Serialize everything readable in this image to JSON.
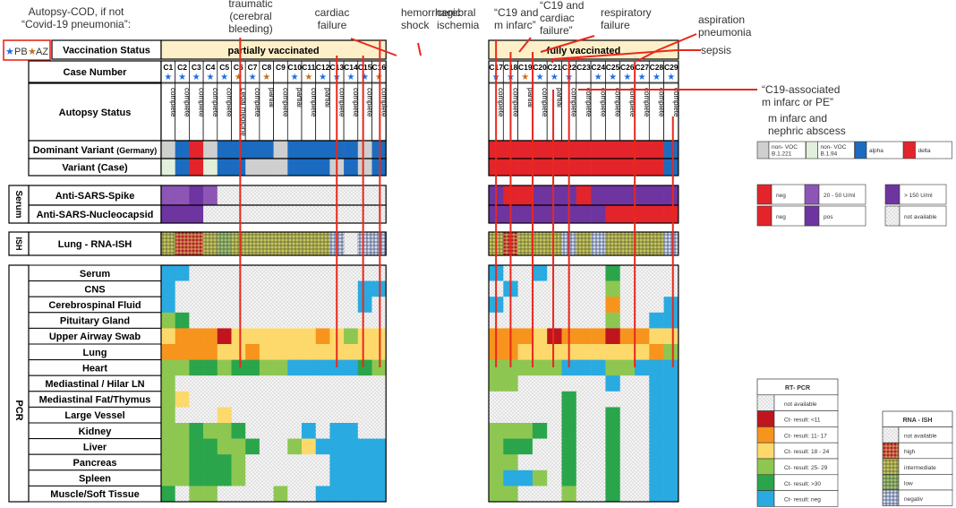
{
  "top_notes": {
    "autopsy_cod": "Autopsy-COD, if not\n“Covid-19 pneumonia”:",
    "traumatic": "traumatic\n(cerebral\nbleeding)",
    "cardiac": "cardiac\nfailure",
    "hemorrhagic": "hemorrhagic\nshock",
    "cerebral": "cerebral\nischemia",
    "c19_infarc": "“C19 and\nm infarc”",
    "c19_cardiac": "“C19 and\ncardiac\nfailure”",
    "respiratory": "respiratory\nfailure",
    "aspiration": "aspiration\npneumonia",
    "sepsis": "sepsis",
    "c19_assoc": "“C19-associated\nm infarc or PE”",
    "nephric": "m infarc and\nnephric abscess"
  },
  "vaccine_legend": {
    "pb": "PB",
    "az": "AZ"
  },
  "row_labels": {
    "vaccination_status": "Vaccination Status",
    "case_number": "Case Number",
    "autopsy_status": "Autopsy Status",
    "dominant_variant": "Dominant Variant",
    "dominant_variant_suffix": "(Germany)",
    "variant_case": "Variant (Case)",
    "serum_section": "Serum",
    "anti_spike": "Anti-SARS-Spike",
    "anti_nucleo": "Anti-SARS-Nucleocapsid",
    "ish_section": "ISH",
    "lung_rna_ish": "Lung - RNA-ISH",
    "pcr_section": "PCR"
  },
  "groups": {
    "partial": "partially vaccinated",
    "full": "fully vaccinated"
  },
  "pcr_tissues": [
    "Serum",
    "CNS",
    "Cerebrospinal Fluid",
    "Pituitary Gland",
    "Upper Airway Swab",
    "Lung",
    "Heart",
    "Mediastinal / Hilar LN",
    "Mediastinal Fat/Thymus",
    "Large Vessel",
    "Kidney",
    "Liver",
    "Pancreas",
    "Spleen",
    "Muscle/Soft Tissue"
  ],
  "colors": {
    "neg_blue": "#29aae1",
    "ct_lt11": "#c0151d",
    "ct_11_17": "#f7941d",
    "ct_18_24": "#fdd96b",
    "ct_25_29": "#8dc751",
    "ct_gt30": "#2aa54b",
    "grey": "#cfcfcf",
    "light_green": "#e2efda",
    "alpha": "#1b6cc0",
    "delta": "#e4242b",
    "purple_dark": "#6e35a1",
    "purple_mid": "#8d55b5",
    "red_annot": "#e8281d",
    "header_fill": "#fdf0c8",
    "pb_star": "#1e6fe0",
    "az_star": "#c8701d"
  },
  "cases_partial": [
    {
      "id": "C1",
      "star": "pb",
      "status": "complete"
    },
    {
      "id": "C2",
      "star": "pb",
      "status": "complete"
    },
    {
      "id": "C3",
      "star": "pb",
      "status": "complete"
    },
    {
      "id": "C4",
      "star": "pb",
      "status": "complete"
    },
    {
      "id": "C5",
      "star": "pb",
      "status": "complete"
    },
    {
      "id": "C6",
      "star": "az",
      "status": "Legal medicine"
    },
    {
      "id": "C7",
      "star": "pb",
      "status": "complete"
    },
    {
      "id": "C8",
      "star": "az",
      "status": "partial"
    },
    {
      "id": "C9",
      "star": "",
      "status": "complete"
    },
    {
      "id": "C10",
      "star": "pb",
      "status": "partial"
    },
    {
      "id": "C11",
      "star": "az",
      "status": "complete"
    },
    {
      "id": "C12",
      "star": "pb",
      "status": "partial"
    },
    {
      "id": "C13",
      "star": "pb",
      "status": "complete"
    },
    {
      "id": "C14",
      "star": "pb",
      "status": "complete"
    },
    {
      "id": "C15",
      "star": "pb",
      "status": "complete"
    },
    {
      "id": "C16",
      "star": "az",
      "status": "complete"
    }
  ],
  "cases_full": [
    {
      "id": "C17",
      "star": "pb",
      "status": "complete"
    },
    {
      "id": "C18",
      "star": "pb",
      "status": "complete"
    },
    {
      "id": "C19",
      "star": "az",
      "status": "partial"
    },
    {
      "id": "C20",
      "star": "pb",
      "status": "complete"
    },
    {
      "id": "C21",
      "star": "pb",
      "status": "partial"
    },
    {
      "id": "C22",
      "star": "pb",
      "status": "complete"
    },
    {
      "id": "C23",
      "star": "",
      "status": "complete"
    },
    {
      "id": "C24",
      "star": "pb",
      "status": "complete"
    },
    {
      "id": "C25",
      "star": "pb",
      "status": "complete"
    },
    {
      "id": "C26",
      "star": "pb",
      "status": "complete"
    },
    {
      "id": "C27",
      "star": "pb",
      "status": "complete"
    },
    {
      "id": "C28",
      "star": "pb",
      "status": "complete"
    },
    {
      "id": "C29",
      "star": "pb",
      "status": "complete"
    }
  ],
  "dominant_partial": [
    "grey",
    "alpha",
    "delta",
    "grey",
    "alpha",
    "alpha",
    "alpha",
    "alpha",
    "grey",
    "alpha",
    "alpha",
    "alpha",
    "alpha",
    "alpha",
    "grey",
    "alpha"
  ],
  "dominant_full": [
    "delta",
    "delta",
    "delta",
    "delta",
    "delta",
    "delta",
    "delta",
    "delta",
    "delta",
    "delta",
    "delta",
    "delta",
    "alpha"
  ],
  "variant_partial": [
    "light_green",
    "alpha",
    "delta",
    "light_green",
    "alpha",
    "alpha",
    "grey",
    "grey",
    "grey",
    "alpha",
    "alpha",
    "alpha",
    "grey",
    "alpha",
    "grey",
    "alpha"
  ],
  "variant_full": [
    "delta",
    "delta",
    "delta",
    "delta",
    "delta",
    "delta",
    "delta",
    "delta",
    "delta",
    "delta",
    "delta",
    "delta",
    "alpha"
  ],
  "spike_partial": [
    "purple_mid",
    "purple_mid",
    "purple_dark",
    "purple_mid",
    "na",
    "na",
    "na",
    "na",
    "na",
    "na",
    "na",
    "na",
    "na",
    "na",
    "na",
    "na"
  ],
  "spike_full": [
    "purple_dark",
    "delta",
    "delta",
    "purple_dark",
    "purple_dark",
    "purple_dark",
    "delta",
    "purple_dark",
    "purple_dark",
    "purple_dark",
    "purple_dark",
    "purple_dark",
    "purple_dark"
  ],
  "nucleo_partial": [
    "purple_dark",
    "purple_dark",
    "purple_dark",
    "na",
    "na",
    "na",
    "na",
    "na",
    "na",
    "na",
    "na",
    "na",
    "na",
    "na",
    "na",
    "na"
  ],
  "nucleo_full": [
    "purple_dark",
    "purple_dark",
    "purple_dark",
    "purple_dark",
    "purple_dark",
    "purple_dark",
    "purple_dark",
    "purple_dark",
    "delta",
    "delta",
    "delta",
    "delta",
    "delta"
  ],
  "ish_partial": [
    "intermediate",
    "high",
    "high",
    "intermediate",
    "low",
    "intermediate",
    "intermediate",
    "intermediate",
    "intermediate",
    "intermediate",
    "intermediate",
    "intermediate",
    "negativ",
    "na",
    "negativ",
    "negativ"
  ],
  "ish_full": [
    "intermediate",
    "high",
    "intermediate",
    "intermediate",
    "intermediate",
    "negativ",
    "intermediate",
    "negativ",
    "intermediate",
    "intermediate",
    "intermediate",
    "intermediate",
    "negativ"
  ],
  "pcr_partial": [
    [
      "neg",
      "neg",
      "na",
      "na",
      "na",
      "na",
      "na",
      "na",
      "na",
      "na",
      "na",
      "na",
      "na",
      "na",
      "na",
      "na"
    ],
    [
      "neg",
      "na",
      "na",
      "na",
      "na",
      "na",
      "na",
      "na",
      "na",
      "na",
      "na",
      "na",
      "na",
      "na",
      "neg",
      "neg"
    ],
    [
      "neg",
      "na",
      "na",
      "na",
      "na",
      "na",
      "na",
      "na",
      "na",
      "na",
      "na",
      "na",
      "na",
      "na",
      "neg",
      "na"
    ],
    [
      "g25",
      "gt30",
      "na",
      "na",
      "na",
      "na",
      "na",
      "na",
      "na",
      "na",
      "na",
      "na",
      "na",
      "na",
      "na",
      "na"
    ],
    [
      "y",
      "o",
      "o",
      "o",
      "r",
      "y",
      "y",
      "y",
      "y",
      "y",
      "y",
      "o",
      "y",
      "g25",
      "y",
      "y"
    ],
    [
      "o",
      "o",
      "o",
      "o",
      "y",
      "y",
      "o",
      "y",
      "y",
      "y",
      "y",
      "y",
      "y",
      "y",
      "y",
      "y"
    ],
    [
      "g25",
      "g25",
      "gt30",
      "gt30",
      "g25",
      "gt30",
      "gt30",
      "g25",
      "g25",
      "neg",
      "neg",
      "neg",
      "neg",
      "neg",
      "gt30",
      "g25"
    ],
    [
      "g25",
      "na",
      "na",
      "na",
      "na",
      "na",
      "na",
      "na",
      "na",
      "na",
      "na",
      "na",
      "na",
      "na",
      "na",
      "na"
    ],
    [
      "g25",
      "y",
      "na",
      "na",
      "na",
      "na",
      "na",
      "na",
      "na",
      "na",
      "na",
      "na",
      "na",
      "na",
      "na",
      "na"
    ],
    [
      "g25",
      "na",
      "na",
      "na",
      "y",
      "na",
      "na",
      "na",
      "na",
      "na",
      "na",
      "na",
      "na",
      "na",
      "na",
      "na"
    ],
    [
      "g25",
      "g25",
      "gt30",
      "g25",
      "g25",
      "gt30",
      "na",
      "na",
      "na",
      "na",
      "neg",
      "na",
      "neg",
      "neg",
      "na",
      "na"
    ],
    [
      "g25",
      "g25",
      "gt30",
      "gt30",
      "g25",
      "g25",
      "gt30",
      "na",
      "na",
      "g25",
      "y",
      "neg",
      "neg",
      "neg",
      "neg",
      "neg"
    ],
    [
      "g25",
      "g25",
      "gt30",
      "gt30",
      "gt30",
      "g25",
      "na",
      "na",
      "na",
      "na",
      "na",
      "na",
      "neg",
      "neg",
      "neg",
      "neg"
    ],
    [
      "g25",
      "g25",
      "gt30",
      "gt30",
      "gt30",
      "g25",
      "na",
      "na",
      "na",
      "na",
      "na",
      "na",
      "neg",
      "neg",
      "neg",
      "neg"
    ],
    [
      "gt30",
      "na",
      "g25",
      "g25",
      "na",
      "na",
      "na",
      "na",
      "g25",
      "na",
      "na",
      "neg",
      "neg",
      "neg",
      "neg",
      "neg"
    ]
  ],
  "pcr_full": [
    [
      "neg",
      "na",
      "na",
      "neg",
      "na",
      "na",
      "na",
      "na",
      "gt30",
      "na",
      "na",
      "na",
      "na"
    ],
    [
      "na",
      "neg",
      "na",
      "na",
      "na",
      "na",
      "na",
      "na",
      "g25",
      "na",
      "na",
      "na",
      "na"
    ],
    [
      "neg",
      "na",
      "na",
      "na",
      "na",
      "na",
      "na",
      "na",
      "o",
      "na",
      "na",
      "na",
      "neg"
    ],
    [
      "na",
      "na",
      "na",
      "na",
      "na",
      "na",
      "na",
      "na",
      "g25",
      "na",
      "na",
      "neg",
      "neg"
    ],
    [
      "o",
      "o",
      "o",
      "y",
      "r",
      "o",
      "o",
      "o",
      "r",
      "o",
      "o",
      "y",
      "y"
    ],
    [
      "o",
      "o",
      "y",
      "y",
      "y",
      "y",
      "y",
      "y",
      "y",
      "y",
      "y",
      "o",
      "g25"
    ],
    [
      "g25",
      "g25",
      "g25",
      "g25",
      "g25",
      "neg",
      "neg",
      "neg",
      "g25",
      "g25",
      "neg",
      "neg",
      "neg"
    ],
    [
      "g25",
      "g25",
      "na",
      "na",
      "na",
      "na",
      "na",
      "na",
      "neg",
      "na",
      "na",
      "neg",
      "neg"
    ],
    [
      "na",
      "na",
      "na",
      "na",
      "na",
      "gt30",
      "na",
      "na",
      "na",
      "na",
      "na",
      "neg",
      "neg"
    ],
    [
      "na",
      "na",
      "na",
      "na",
      "na",
      "gt30",
      "na",
      "na",
      "gt30",
      "na",
      "na",
      "neg",
      "neg"
    ],
    [
      "g25",
      "g25",
      "g25",
      "gt30",
      "na",
      "gt30",
      "na",
      "na",
      "gt30",
      "na",
      "na",
      "neg",
      "neg"
    ],
    [
      "g25",
      "gt30",
      "gt30",
      "na",
      "na",
      "gt30",
      "na",
      "na",
      "gt30",
      "na",
      "na",
      "neg",
      "neg"
    ],
    [
      "g25",
      "g25",
      "na",
      "na",
      "na",
      "gt30",
      "na",
      "na",
      "gt30",
      "na",
      "na",
      "neg",
      "neg"
    ],
    [
      "g25",
      "neg",
      "neg",
      "g25",
      "na",
      "gt30",
      "na",
      "na",
      "gt30",
      "na",
      "na",
      "neg",
      "neg"
    ],
    [
      "g25",
      "g25",
      "na",
      "na",
      "na",
      "g25",
      "na",
      "na",
      "gt30",
      "na",
      "na",
      "neg",
      "neg"
    ]
  ],
  "legend_variant": [
    {
      "key": "grey",
      "label": "non- VOC\nB.1.221"
    },
    {
      "key": "light_green",
      "label": "non- VOC\nB.1.94"
    },
    {
      "key": "alpha",
      "label": "alpha"
    },
    {
      "key": "delta",
      "label": "delta"
    }
  ],
  "legend_serum": {
    "neg": "neg",
    "s_20_50": "20 - 50 U/ml",
    "s_gt150": "> 150 U/ml",
    "neg2": "neg",
    "pos": "pos",
    "na": "not available"
  },
  "legend_rtpcr": {
    "title": "RT- PCR",
    "items": [
      {
        "key": "na",
        "label": "not available"
      },
      {
        "key": "r",
        "label": "Ct- result: <11"
      },
      {
        "key": "o",
        "label": "Ct- result: 11- 17"
      },
      {
        "key": "y",
        "label": "Ct- result: 18 - 24"
      },
      {
        "key": "g25",
        "label": "Ct- result: 25- 29"
      },
      {
        "key": "gt30",
        "label": "Ct- result: >30"
      },
      {
        "key": "neg",
        "label": "Ct- result: neg"
      }
    ]
  },
  "legend_ish": {
    "title": "RNA - ISH",
    "items": [
      {
        "key": "na",
        "label": "not available"
      },
      {
        "key": "high",
        "label": "high"
      },
      {
        "key": "intermediate",
        "label": "intermediate"
      },
      {
        "key": "low",
        "label": "low"
      },
      {
        "key": "negativ",
        "label": "negativ"
      }
    ]
  }
}
